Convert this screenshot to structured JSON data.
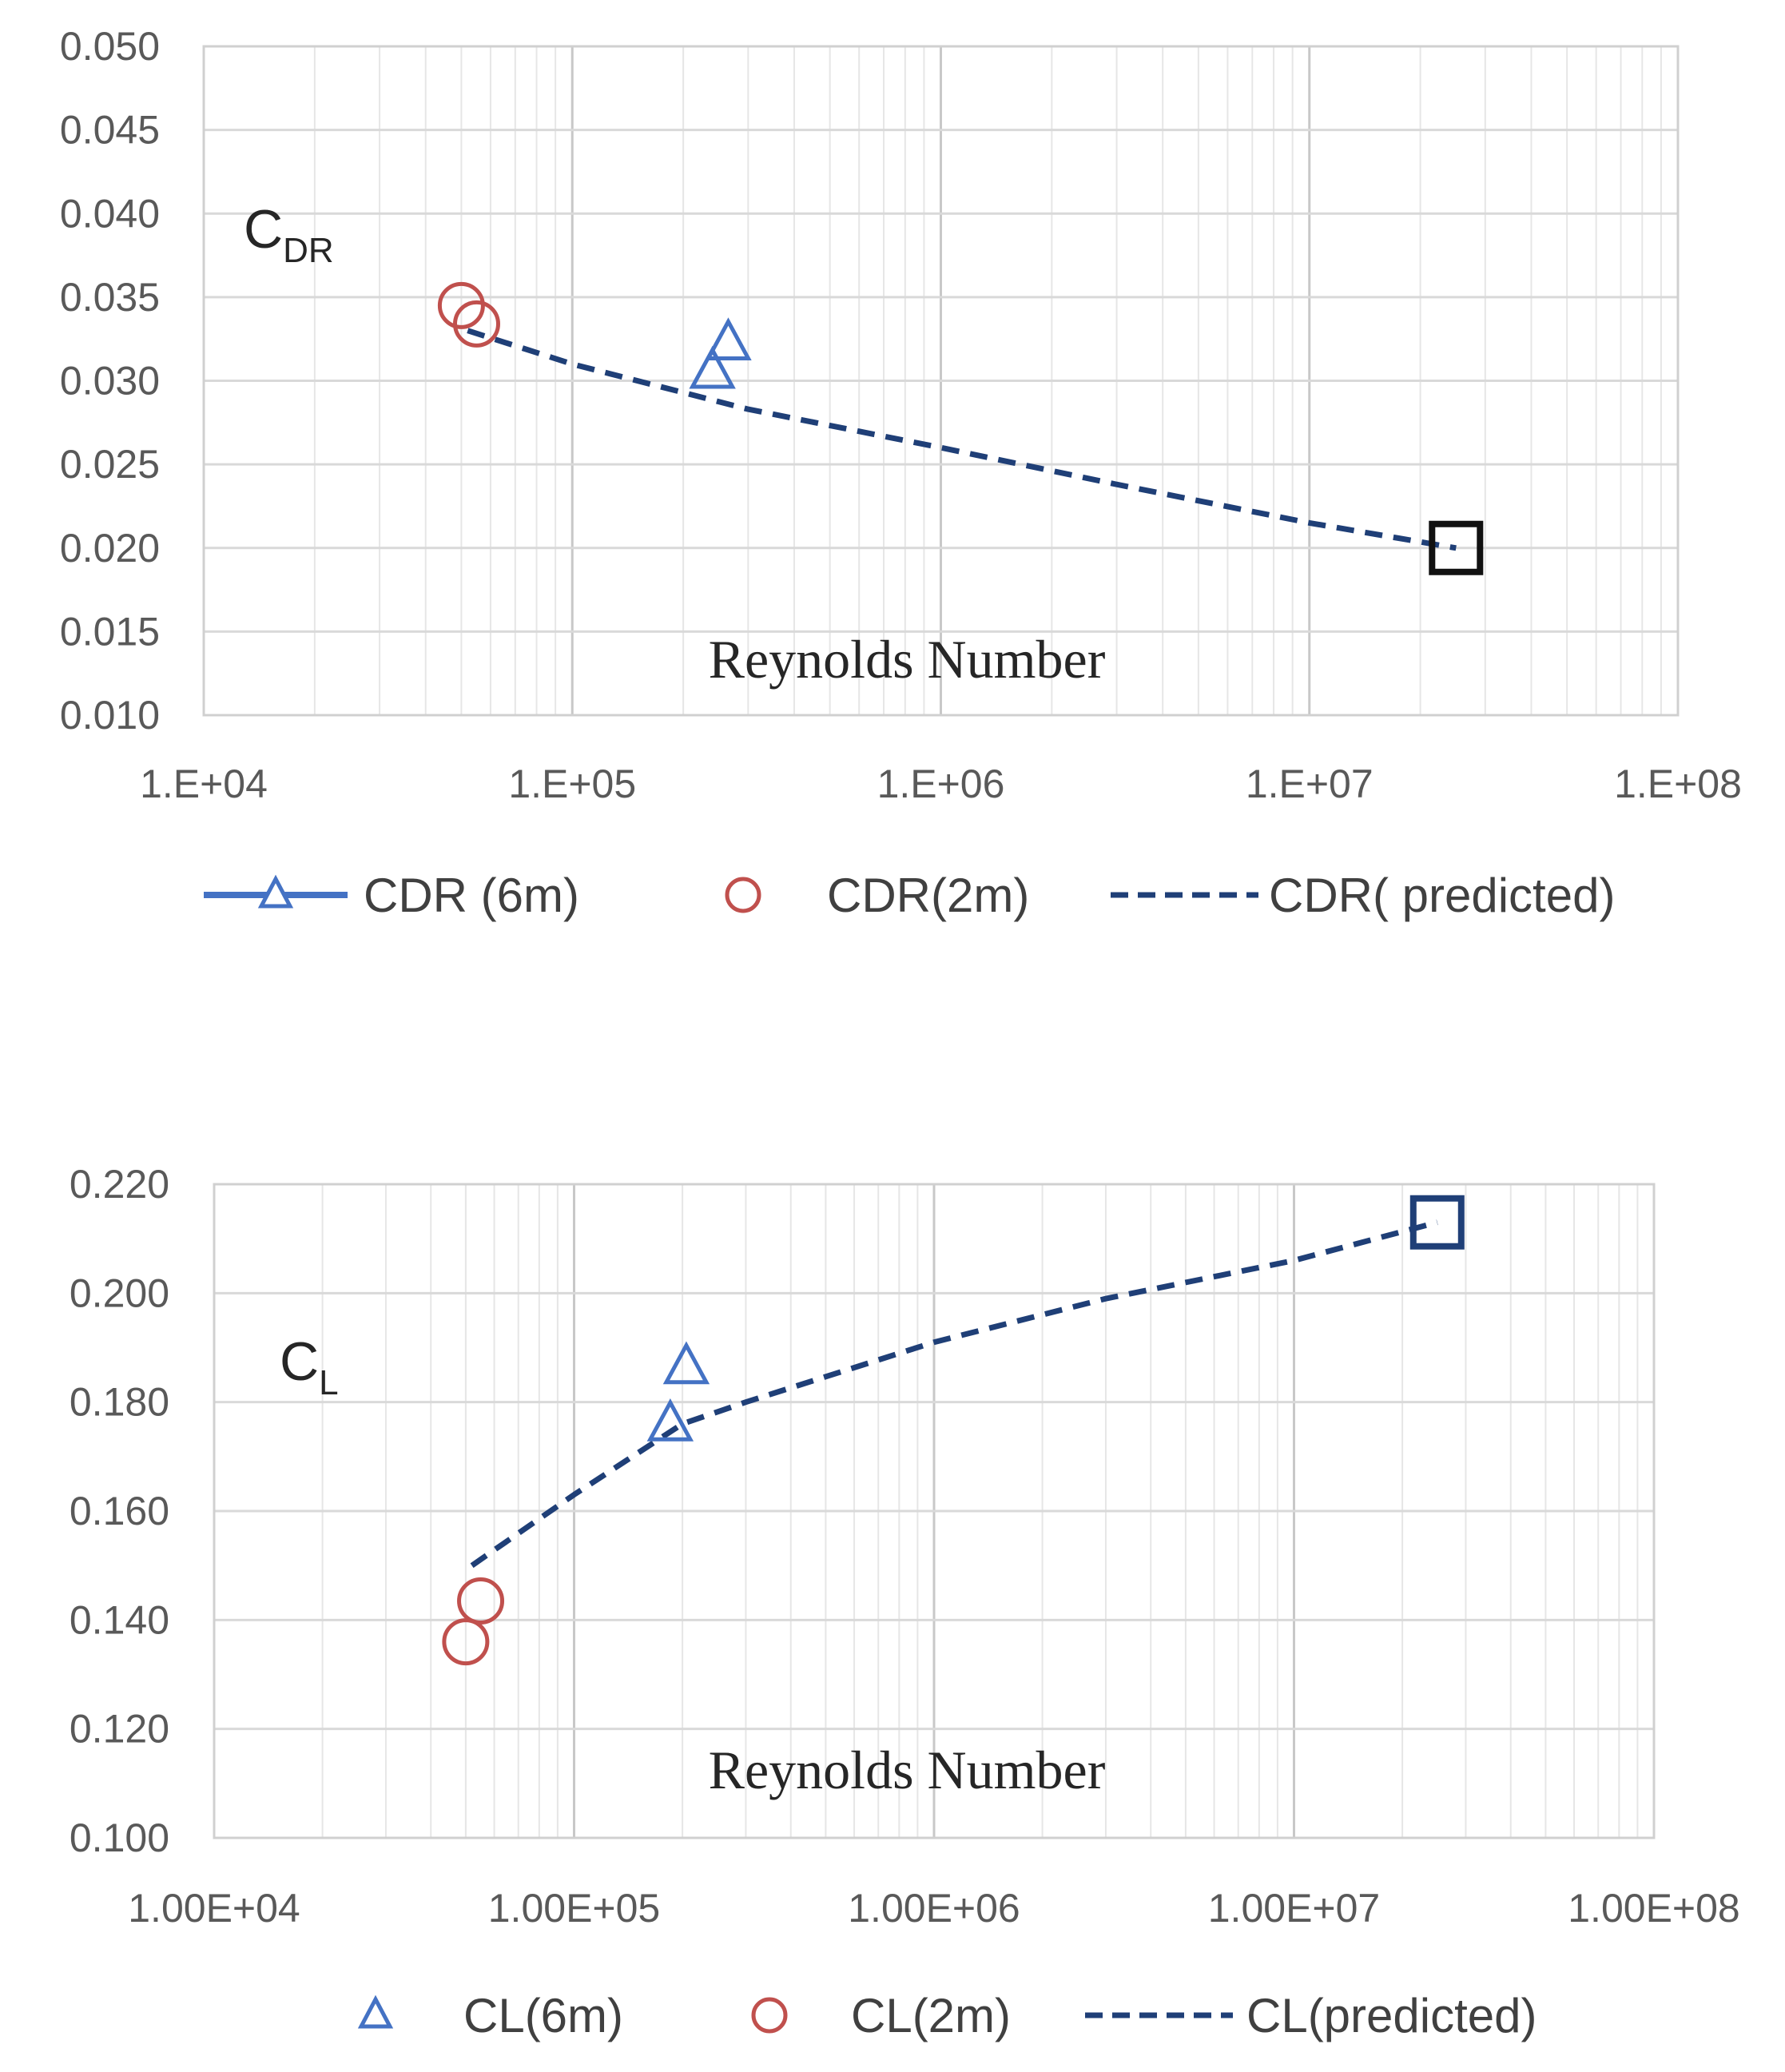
{
  "chart_data": [
    {
      "type": "scatter",
      "title": "",
      "annotation": {
        "main": "C",
        "sub": "DR"
      },
      "xlabel": "Reynolds Number",
      "ylabel": "",
      "xscale": "log",
      "xlim": [
        10000,
        100000000
      ],
      "ylim": [
        0.01,
        0.05
      ],
      "x_tick_labels": [
        "1.E+04",
        "1.E+05",
        "1.E+06",
        "1.E+07",
        "1.E+08"
      ],
      "y_tick_labels": [
        "0.010",
        "0.015",
        "0.020",
        "0.025",
        "0.030",
        "0.035",
        "0.040",
        "0.045",
        "0.050"
      ],
      "grid": true,
      "legend_position": "bottom",
      "series": [
        {
          "name": "CDR (6m)",
          "marker": "triangle",
          "color": "#4472C4",
          "x": [
            240000,
            265000
          ],
          "y": [
            0.0305,
            0.0322
          ]
        },
        {
          "name": "CDR(2m)",
          "marker": "circle",
          "color": "#C0504D",
          "x": [
            50000,
            55000
          ],
          "y": [
            0.0345,
            0.0334
          ]
        },
        {
          "name": "CDR( predicted)",
          "marker": "none",
          "line": "dashed",
          "color": "#1F3F77",
          "x": [
            52000,
            100000,
            300000,
            1000000,
            3000000,
            10000000,
            25000000
          ],
          "y": [
            0.033,
            0.031,
            0.0283,
            0.026,
            0.0238,
            0.0215,
            0.02
          ]
        }
      ],
      "highlight_point": {
        "x": 25000000,
        "y": 0.02,
        "color": "#111111"
      }
    },
    {
      "type": "scatter",
      "title": "",
      "annotation": {
        "main": "C",
        "sub": "L"
      },
      "xlabel": "Reynolds Number",
      "ylabel": "",
      "xscale": "log",
      "xlim": [
        10000,
        100000000
      ],
      "ylim": [
        0.1,
        0.22
      ],
      "x_tick_labels": [
        "1.00E+04",
        "1.00E+05",
        "1.00E+06",
        "1.00E+07",
        "1.00E+08"
      ],
      "y_tick_labels": [
        "0.100",
        "0.120",
        "0.140",
        "0.160",
        "0.180",
        "0.200",
        "0.220"
      ],
      "grid": true,
      "legend_position": "bottom",
      "series": [
        {
          "name": "CL(6m)",
          "marker": "triangle",
          "color": "#4472C4",
          "x": [
            185000,
            205000
          ],
          "y": [
            0.1758,
            0.1863
          ]
        },
        {
          "name": "CL(2m)",
          "marker": "circle",
          "color": "#C0504D",
          "x": [
            50000,
            55000
          ],
          "y": [
            0.136,
            0.1435
          ]
        },
        {
          "name": "CL(predicted)",
          "marker": "none",
          "line": "dashed",
          "color": "#1F3F77",
          "x": [
            52000,
            100000,
            200000,
            300000,
            1000000,
            3000000,
            10000000,
            25000000
          ],
          "y": [
            0.15,
            0.163,
            0.176,
            0.18,
            0.191,
            0.199,
            0.206,
            0.213
          ]
        }
      ],
      "highlight_point": {
        "x": 25000000,
        "y": 0.213,
        "color": "#1F3F77"
      }
    }
  ]
}
